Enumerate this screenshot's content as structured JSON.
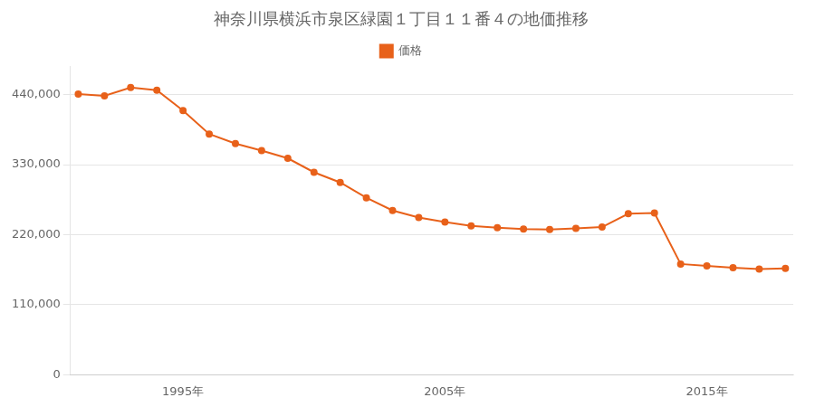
{
  "chart_data": {
    "type": "line",
    "title": "神奈川県横浜市泉区緑園１丁目１１番４の地価推移",
    "x": [
      1991,
      1992,
      1993,
      1994,
      1995,
      1996,
      1997,
      1998,
      1999,
      2000,
      2001,
      2002,
      2003,
      2004,
      2005,
      2006,
      2007,
      2008,
      2009,
      2010,
      2011,
      2012,
      2013,
      2014,
      2015,
      2016,
      2017,
      2018
    ],
    "series": [
      {
        "name": "価格",
        "color": "#E8611A",
        "marker": "circle",
        "line_style": "solid",
        "values": [
          441000,
          438000,
          451000,
          447000,
          415000,
          378000,
          363000,
          352000,
          340000,
          318000,
          302000,
          278000,
          258000,
          247000,
          240000,
          234000,
          231000,
          229000,
          228000,
          230000,
          232000,
          253000,
          254000,
          174000,
          171000,
          168000,
          166000,
          167000
        ]
      }
    ],
    "xlim": [
      1990.7,
      2018.3
    ],
    "xticks": [
      {
        "value": 1995,
        "label": "1995年"
      },
      {
        "value": 2005,
        "label": "2005年"
      },
      {
        "value": 2015,
        "label": "2015年"
      }
    ],
    "ylim": [
      0,
      484000
    ],
    "yticks": [
      0,
      {
        "value": 110000,
        "label": "110,000"
      },
      {
        "value": 220000,
        "label": "220,000"
      },
      {
        "value": 330000,
        "label": "330,000"
      },
      {
        "value": 440000,
        "label": "440,000"
      }
    ],
    "grid": "y",
    "legend": "top"
  }
}
